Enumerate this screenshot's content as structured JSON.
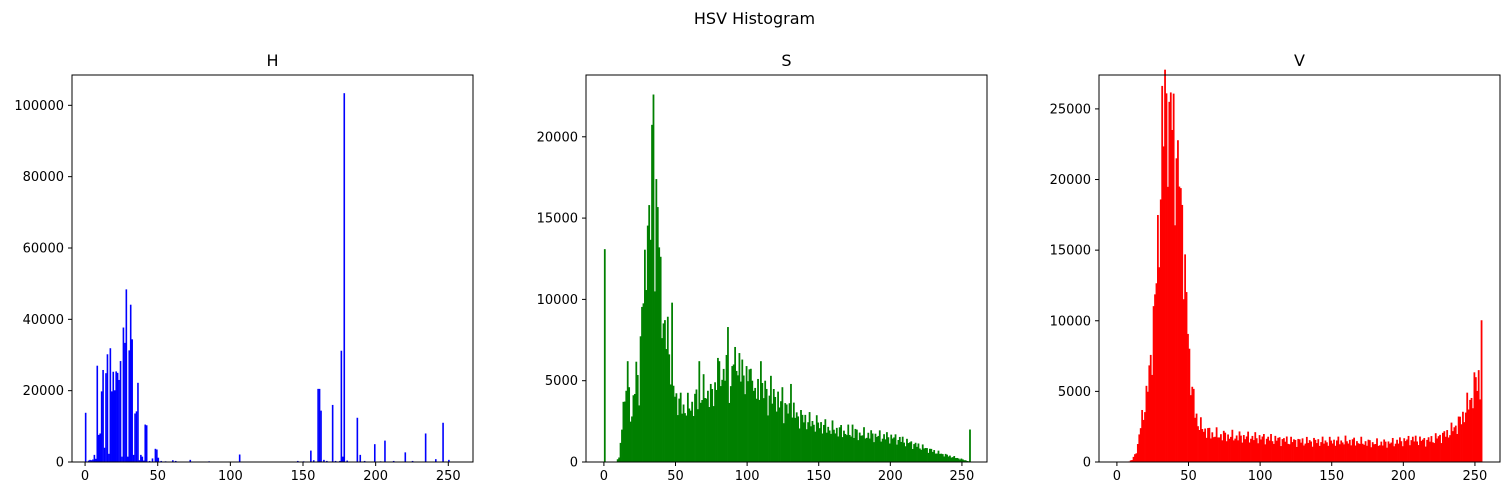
{
  "figure": {
    "title": "HSV Histogram"
  },
  "chart_data": [
    {
      "type": "bar",
      "title": "H",
      "color": "#0000ff",
      "xlim": [
        -9,
        267
      ],
      "ylim": [
        0,
        108500
      ],
      "xticks": [
        0,
        50,
        100,
        150,
        200,
        250
      ],
      "yticks": [
        0,
        20000,
        40000,
        60000,
        80000,
        100000
      ],
      "points": [
        [
          0,
          13800
        ],
        [
          2,
          400
        ],
        [
          3,
          600
        ],
        [
          4,
          500
        ],
        [
          5,
          700
        ],
        [
          6,
          2000
        ],
        [
          7,
          900
        ],
        [
          8,
          27000
        ],
        [
          9,
          7600
        ],
        [
          10,
          8000
        ],
        [
          11,
          19800
        ],
        [
          12,
          25800
        ],
        [
          13,
          4000
        ],
        [
          14,
          24900
        ],
        [
          15,
          30200
        ],
        [
          16,
          2300
        ],
        [
          17,
          31900
        ],
        [
          18,
          19800
        ],
        [
          19,
          25300
        ],
        [
          20,
          20100
        ],
        [
          21,
          25400
        ],
        [
          22,
          25000
        ],
        [
          23,
          23000
        ],
        [
          24,
          28300
        ],
        [
          25,
          1500
        ],
        [
          26,
          37700
        ],
        [
          27,
          33400
        ],
        [
          28,
          48400
        ],
        [
          29,
          1500
        ],
        [
          30,
          31300
        ],
        [
          31,
          44100
        ],
        [
          32,
          34400
        ],
        [
          33,
          2000
        ],
        [
          34,
          13600
        ],
        [
          35,
          14200
        ],
        [
          36,
          22200
        ],
        [
          37,
          500
        ],
        [
          38,
          2000
        ],
        [
          39,
          1500
        ],
        [
          40,
          400
        ],
        [
          41,
          10500
        ],
        [
          42,
          10300
        ],
        [
          44,
          300
        ],
        [
          46,
          1000
        ],
        [
          48,
          3700
        ],
        [
          49,
          3500
        ],
        [
          50,
          1200
        ],
        [
          52,
          300
        ],
        [
          55,
          200
        ],
        [
          60,
          500
        ],
        [
          62,
          300
        ],
        [
          72,
          600
        ],
        [
          85,
          200
        ],
        [
          106,
          2100
        ],
        [
          120,
          100
        ],
        [
          140,
          100
        ],
        [
          146,
          300
        ],
        [
          150,
          200
        ],
        [
          155,
          3200
        ],
        [
          157,
          500
        ],
        [
          160,
          20500
        ],
        [
          161,
          20500
        ],
        [
          162,
          14400
        ],
        [
          164,
          600
        ],
        [
          166,
          300
        ],
        [
          170,
          16000
        ],
        [
          172,
          300
        ],
        [
          175,
          300
        ],
        [
          176,
          31200
        ],
        [
          177,
          1500
        ],
        [
          178,
          103400
        ],
        [
          180,
          400
        ],
        [
          187,
          12400
        ],
        [
          189,
          2000
        ],
        [
          192,
          300
        ],
        [
          199,
          5000
        ],
        [
          203,
          200
        ],
        [
          206,
          6000
        ],
        [
          212,
          300
        ],
        [
          220,
          2700
        ],
        [
          225,
          300
        ],
        [
          234,
          8000
        ],
        [
          241,
          800
        ],
        [
          246,
          11000
        ],
        [
          250,
          600
        ]
      ]
    },
    {
      "type": "bar",
      "title": "S",
      "color": "#008000",
      "xlim": [
        -12.5,
        267.5
      ],
      "ylim": [
        0,
        23800
      ],
      "xticks": [
        0,
        50,
        100,
        150,
        200,
        250
      ],
      "yticks": [
        0,
        5000,
        10000,
        15000,
        20000
      ],
      "anchors": [
        [
          0,
          11900
        ],
        [
          1,
          0
        ],
        [
          8,
          0
        ],
        [
          10,
          300
        ],
        [
          12,
          1800
        ],
        [
          14,
          3500
        ],
        [
          16,
          4800
        ],
        [
          18,
          3000
        ],
        [
          20,
          3500
        ],
        [
          22,
          5500
        ],
        [
          24,
          4800
        ],
        [
          26,
          9000
        ],
        [
          28,
          11200
        ],
        [
          30,
          15800
        ],
        [
          32,
          14800
        ],
        [
          34,
          22600
        ],
        [
          35,
          14000
        ],
        [
          36,
          17400
        ],
        [
          38,
          12500
        ],
        [
          40,
          10000
        ],
        [
          42,
          7200
        ],
        [
          44,
          8200
        ],
        [
          46,
          6000
        ],
        [
          48,
          4600
        ],
        [
          50,
          3900
        ],
        [
          55,
          3300
        ],
        [
          60,
          3400
        ],
        [
          65,
          3900
        ],
        [
          70,
          4300
        ],
        [
          75,
          4000
        ],
        [
          80,
          5500
        ],
        [
          85,
          5400
        ],
        [
          88,
          4300
        ],
        [
          90,
          5800
        ],
        [
          95,
          5500
        ],
        [
          100,
          5300
        ],
        [
          105,
          4200
        ],
        [
          110,
          4200
        ],
        [
          115,
          3900
        ],
        [
          120,
          3700
        ],
        [
          125,
          3300
        ],
        [
          130,
          3100
        ],
        [
          135,
          2800
        ],
        [
          140,
          2600
        ],
        [
          145,
          2400
        ],
        [
          150,
          2300
        ],
        [
          155,
          2100
        ],
        [
          160,
          2000
        ],
        [
          165,
          1900
        ],
        [
          170,
          1800
        ],
        [
          175,
          1750
        ],
        [
          180,
          1700
        ],
        [
          185,
          1650
        ],
        [
          190,
          1600
        ],
        [
          195,
          1550
        ],
        [
          200,
          1500
        ],
        [
          205,
          1400
        ],
        [
          210,
          1250
        ],
        [
          215,
          1100
        ],
        [
          220,
          950
        ],
        [
          225,
          800
        ],
        [
          230,
          650
        ],
        [
          235,
          500
        ],
        [
          240,
          380
        ],
        [
          245,
          270
        ],
        [
          250,
          150
        ],
        [
          254,
          50
        ],
        [
          255,
          1600
        ]
      ],
      "spikes": [
        [
          13,
          3700
        ],
        [
          16,
          6200
        ],
        [
          17,
          4600
        ],
        [
          31,
          15800
        ],
        [
          34,
          22600
        ],
        [
          36,
          17400
        ],
        [
          38,
          13200
        ],
        [
          47,
          9800
        ],
        [
          66,
          6200
        ],
        [
          74,
          4800
        ],
        [
          79,
          6400
        ],
        [
          80,
          6200
        ],
        [
          84,
          5000
        ],
        [
          86,
          8300
        ],
        [
          89,
          5900
        ],
        [
          92,
          5600
        ],
        [
          94,
          6700
        ],
        [
          96,
          6300
        ],
        [
          99,
          5900
        ],
        [
          101,
          5700
        ],
        [
          103,
          5000
        ],
        [
          109,
          6200
        ],
        [
          112,
          5000
        ],
        [
          116,
          5300
        ],
        [
          119,
          4000
        ],
        [
          124,
          4600
        ],
        [
          130,
          4800
        ],
        [
          173,
          2300
        ]
      ]
    },
    {
      "type": "bar",
      "title": "V",
      "color": "#ff0000",
      "xlim": [
        -12.5,
        267.5
      ],
      "ylim": [
        0,
        27400
      ],
      "xticks": [
        0,
        50,
        100,
        150,
        200,
        250
      ],
      "yticks": [
        0,
        5000,
        10000,
        15000,
        20000,
        25000
      ],
      "anchors": [
        [
          0,
          0
        ],
        [
          5,
          0
        ],
        [
          8,
          50
        ],
        [
          10,
          150
        ],
        [
          12,
          500
        ],
        [
          14,
          1200
        ],
        [
          16,
          2500
        ],
        [
          18,
          3600
        ],
        [
          20,
          4600
        ],
        [
          22,
          6100
        ],
        [
          24,
          8500
        ],
        [
          26,
          11200
        ],
        [
          28,
          15000
        ],
        [
          30,
          20200
        ],
        [
          32,
          24200
        ],
        [
          34,
          25900
        ],
        [
          35,
          26000
        ],
        [
          36,
          25400
        ],
        [
          38,
          24500
        ],
        [
          40,
          22000
        ],
        [
          42,
          18800
        ],
        [
          44,
          17800
        ],
        [
          46,
          14500
        ],
        [
          48,
          11800
        ],
        [
          50,
          7400
        ],
        [
          52,
          5000
        ],
        [
          54,
          3600
        ],
        [
          56,
          2800
        ],
        [
          58,
          2500
        ],
        [
          60,
          2300
        ],
        [
          65,
          2000
        ],
        [
          70,
          1900
        ],
        [
          75,
          1850
        ],
        [
          80,
          1800
        ],
        [
          90,
          1750
        ],
        [
          100,
          1700
        ],
        [
          110,
          1600
        ],
        [
          120,
          1500
        ],
        [
          130,
          1450
        ],
        [
          140,
          1450
        ],
        [
          150,
          1450
        ],
        [
          160,
          1480
        ],
        [
          170,
          1400
        ],
        [
          180,
          1320
        ],
        [
          190,
          1350
        ],
        [
          200,
          1500
        ],
        [
          205,
          1600
        ],
        [
          210,
          1550
        ],
        [
          215,
          1500
        ],
        [
          220,
          1600
        ],
        [
          225,
          1800
        ],
        [
          230,
          2000
        ],
        [
          235,
          2400
        ],
        [
          240,
          3000
        ],
        [
          244,
          3900
        ],
        [
          248,
          4800
        ],
        [
          250,
          5600
        ],
        [
          252,
          6000
        ],
        [
          253,
          5400
        ],
        [
          254,
          9800
        ],
        [
          255,
          0
        ]
      ],
      "spikes": [
        [
          34,
          26100
        ],
        [
          36,
          25500
        ],
        [
          41,
          21500
        ],
        [
          43,
          19500
        ],
        [
          45,
          18200
        ],
        [
          47,
          14700
        ]
      ]
    }
  ]
}
